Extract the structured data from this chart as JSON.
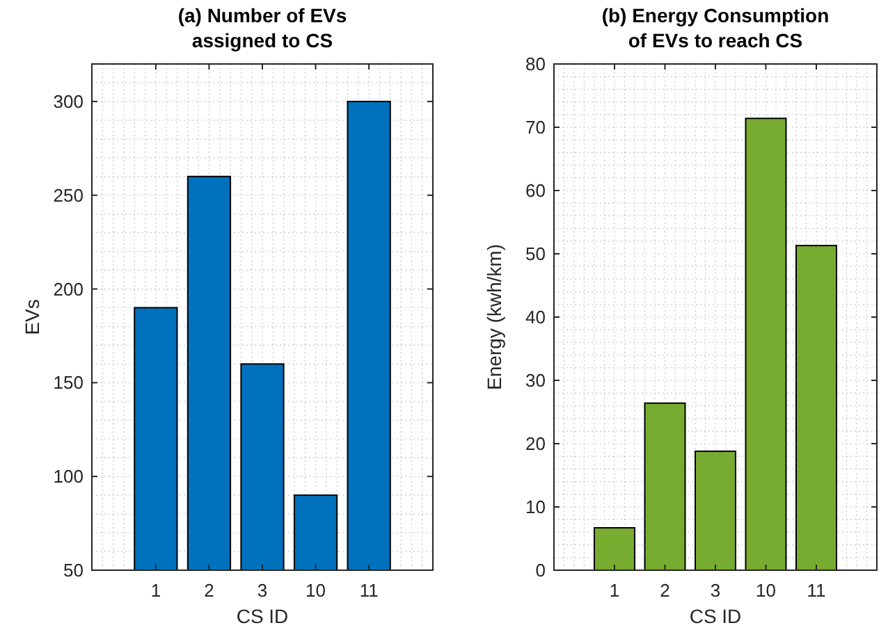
{
  "chart_data": [
    {
      "type": "bar",
      "title": "(a) Number of EVs\nassigned to CS",
      "xlabel": "CS ID",
      "ylabel": "EVs",
      "categories": [
        "1",
        "2",
        "3",
        "10",
        "11"
      ],
      "values": [
        190,
        260,
        160,
        90,
        300
      ],
      "color": "#0072bd",
      "ylim": [
        50,
        320
      ],
      "yticks": [
        50,
        100,
        150,
        200,
        250,
        300
      ],
      "grid": true
    },
    {
      "type": "bar",
      "title": "(b) Energy Consumption\nof EVs to reach CS",
      "xlabel": "CS ID",
      "ylabel": "Energy (kwh/km)",
      "categories": [
        "1",
        "2",
        "3",
        "10",
        "11"
      ],
      "values": [
        6.7,
        26.4,
        18.8,
        71.4,
        51.3
      ],
      "color": "#77ac30",
      "ylim": [
        0,
        80
      ],
      "yticks": [
        0,
        10,
        20,
        30,
        40,
        50,
        60,
        70,
        80
      ],
      "grid": true
    }
  ]
}
